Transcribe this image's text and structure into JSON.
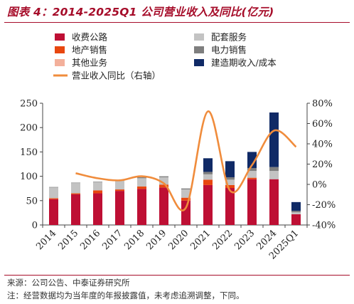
{
  "title": "图表 4：2014-2025Q1 公司营业收入及同比(亿元)",
  "source": "来源：公司公告、中泰证券研究所",
  "footnote": "注：经营数据均为当年度的年报披露值，未考虑追溯调整，下同。",
  "colors": {
    "title": "#a60d2a",
    "toll": "#be0f34",
    "property": "#e8470f",
    "other": "#f3b09b",
    "supporting": "#c3c3c3",
    "power": "#7f7f7f",
    "construction": "#102a66",
    "yoy": "#f08c3c",
    "axis": "#444444"
  },
  "chart_data": {
    "type": "bar",
    "stacked": true,
    "categories": [
      "2014",
      "2015",
      "2016",
      "2017",
      "2018",
      "2019",
      "2020",
      "2021",
      "2022",
      "2023",
      "2024",
      "2025Q1"
    ],
    "series": [
      {
        "name": "收费公路",
        "key": "toll",
        "values": [
          53,
          63,
          65,
          70,
          74,
          77,
          50,
          82,
          76,
          94,
          94,
          22
        ]
      },
      {
        "name": "地产销售",
        "key": "property",
        "values": [
          2,
          2,
          6,
          3,
          5,
          6,
          6,
          11,
          6,
          3,
          0,
          0
        ]
      },
      {
        "name": "其他业务",
        "key": "other",
        "values": [
          0,
          0,
          0,
          0,
          0,
          0,
          0,
          0,
          0,
          0,
          0,
          0
        ]
      },
      {
        "name": "配套服务",
        "key": "supporting",
        "values": [
          22,
          21,
          17,
          18,
          17,
          15,
          17,
          11,
          11,
          14,
          17,
          4
        ]
      },
      {
        "name": "电力销售",
        "key": "power",
        "values": [
          1,
          1,
          1,
          1,
          2,
          2,
          2,
          5,
          5,
          6,
          8,
          3
        ]
      },
      {
        "name": "建造期收入/成本",
        "key": "construction",
        "values": [
          0,
          0,
          0,
          0,
          0,
          0,
          0,
          28,
          33,
          33,
          112,
          18
        ]
      }
    ],
    "line": {
      "name": "营业收入同比（右轴）",
      "key": "yoy",
      "values": [
        null,
        11,
        6,
        4,
        8,
        1,
        -23,
        72,
        -6,
        19,
        53,
        37
      ]
    },
    "legend": [
      {
        "label": "收费公路",
        "key": "toll",
        "kind": "box"
      },
      {
        "label": "配套服务",
        "key": "supporting",
        "kind": "box"
      },
      {
        "label": "地产销售",
        "key": "property",
        "kind": "box"
      },
      {
        "label": "电力销售",
        "key": "power",
        "kind": "box"
      },
      {
        "label": "其他业务",
        "key": "other",
        "kind": "box"
      },
      {
        "label": "建造期收入/成本",
        "key": "construction",
        "kind": "box"
      },
      {
        "label": "营业收入同比（右轴）",
        "key": "yoy",
        "kind": "line"
      }
    ],
    "legend_position": "top",
    "y_left": {
      "min": 0,
      "max": 250,
      "ticks": [
        "0",
        "50",
        "100",
        "150",
        "200",
        "250"
      ]
    },
    "y_right": {
      "min": -40,
      "max": 80,
      "ticks": [
        "-40%",
        "-20%",
        "0%",
        "20%",
        "40%",
        "60%",
        "80%"
      ]
    },
    "grid": false
  }
}
